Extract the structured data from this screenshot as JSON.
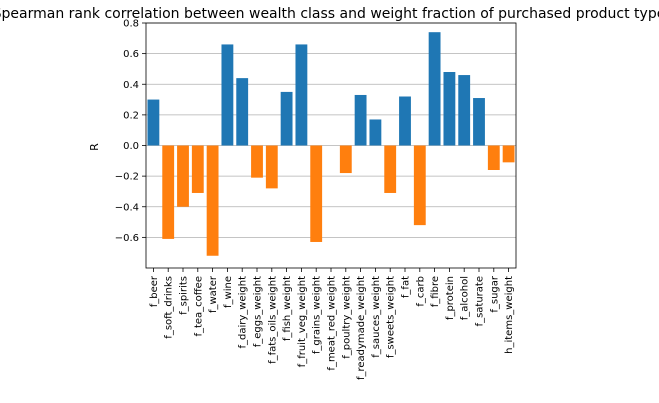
{
  "chart_data": {
    "type": "bar",
    "title": "Spearman rank correlation between wealth class and weight fraction of purchased product type",
    "xlabel": "",
    "ylabel": "R",
    "ylim": [
      -0.8,
      0.8
    ],
    "yticks": [
      0.8,
      0.6,
      0.4,
      0.2,
      0.0,
      -0.2,
      -0.4,
      -0.6
    ],
    "ytick_labels": [
      "0.8",
      "0.6",
      "0.4",
      "0.2",
      "0.0",
      "−0.2",
      "−0.4",
      "−0.6"
    ],
    "grid": "horizontal",
    "colors": {
      "positive": "#1f77b4",
      "negative": "#ff7f0e",
      "grid": "#b0b0b0"
    },
    "categories": [
      "f_beer",
      "f_soft_drinks",
      "f_spirits",
      "f_tea_coffee",
      "f_water",
      "f_wine",
      "f_dairy_weight",
      "f_eggs_weight",
      "f_fats_oils_weight",
      "f_fish_weight",
      "f_fruit_veg_weight",
      "f_grains_weight",
      "f_meat_red_weight",
      "f_poultry_weight",
      "f_readymade_weight",
      "f_sauces_weight",
      "f_sweets_weight",
      "f_fat",
      "f_carb",
      "f_fibre",
      "f_protein",
      "f_alcohol",
      "f_saturate",
      "f_sugar",
      "h_items_weight"
    ],
    "values": [
      0.3,
      -0.61,
      -0.4,
      -0.31,
      -0.72,
      0.66,
      0.44,
      -0.21,
      -0.28,
      0.35,
      0.66,
      -0.63,
      0.0,
      -0.18,
      0.33,
      0.17,
      -0.31,
      0.32,
      -0.52,
      0.74,
      0.48,
      0.46,
      0.31,
      -0.16,
      -0.11
    ]
  }
}
